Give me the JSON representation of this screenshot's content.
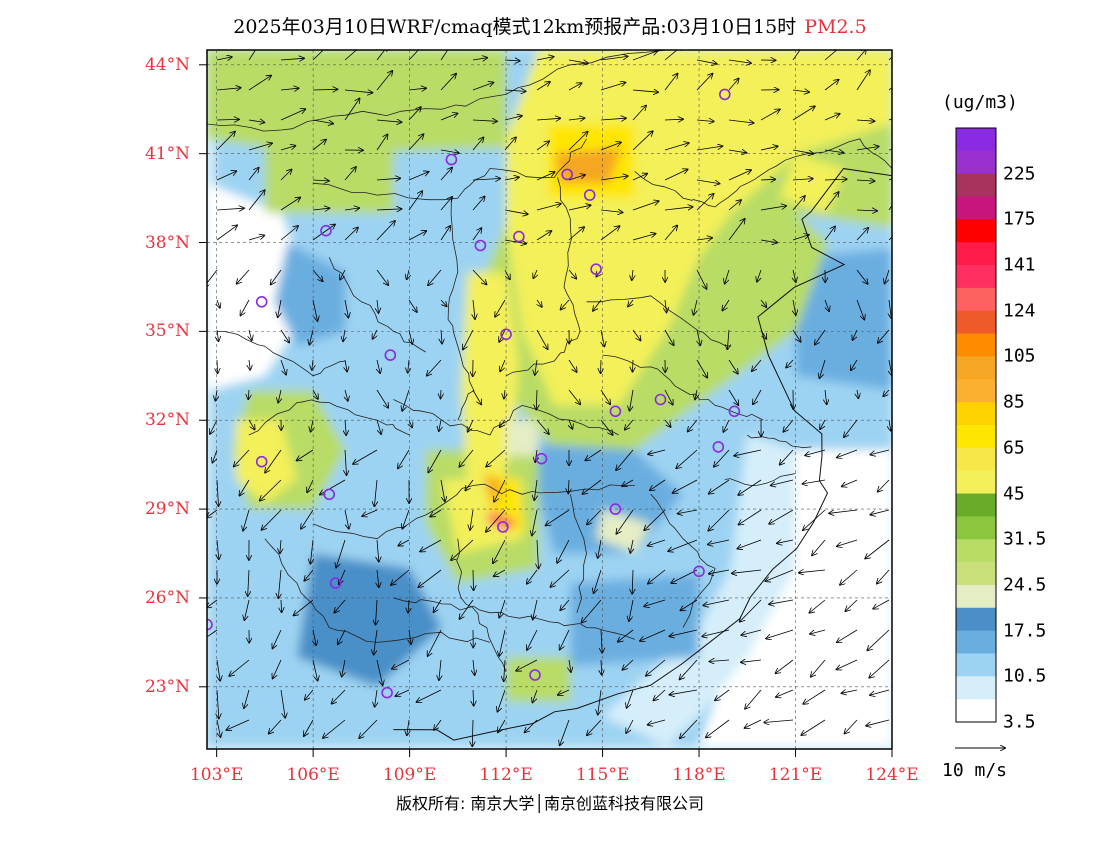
{
  "title": {
    "main": "2025年03月10日WRF/cmaq模式12km预报产品:03月10日15时",
    "pollutant": "PM2.5"
  },
  "legend": {
    "unit": "(ug/m3)",
    "bins": [
      {
        "color": "#8a2be2"
      },
      {
        "color": "#9b30d0",
        "label": "225"
      },
      {
        "color": "#a8335e"
      },
      {
        "color": "#c8157d",
        "label": "175"
      },
      {
        "color": "#ff0000"
      },
      {
        "color": "#ff1a4a",
        "label": "141"
      },
      {
        "color": "#ff3060"
      },
      {
        "color": "#ff6060",
        "label": "124"
      },
      {
        "color": "#f05a28"
      },
      {
        "color": "#ff8c00",
        "label": "105"
      },
      {
        "color": "#f5a623"
      },
      {
        "color": "#fbb030",
        "label": "85"
      },
      {
        "color": "#ffd200"
      },
      {
        "color": "#ffe600",
        "label": "65"
      },
      {
        "color": "#f7e84a"
      },
      {
        "color": "#f3f05a",
        "label": "45"
      },
      {
        "color": "#6aab2a"
      },
      {
        "color": "#8cc63f",
        "label": "31.5"
      },
      {
        "color": "#b8dc66"
      },
      {
        "color": "#c9e07a",
        "label": "24.5"
      },
      {
        "color": "#e4edc4"
      },
      {
        "color": "#4a8fc8",
        "label": "17.5"
      },
      {
        "color": "#6aaee0"
      },
      {
        "color": "#9dd3f2",
        "label": "10.5"
      },
      {
        "color": "#d5eefa"
      },
      {
        "color": "#ffffff",
        "label": "3.5"
      }
    ],
    "reference_vector": "10 m/s"
  },
  "axes": {
    "lat_labels": [
      "44°N",
      "41°N",
      "38°N",
      "35°N",
      "32°N",
      "29°N",
      "26°N",
      "23°N"
    ],
    "lat_values": [
      44,
      41,
      38,
      35,
      32,
      29,
      26,
      23
    ],
    "lon_labels": [
      "103°E",
      "106°E",
      "109°E",
      "112°E",
      "115°E",
      "118°E",
      "121°E",
      "124°E"
    ],
    "lon_values": [
      103,
      106,
      109,
      112,
      115,
      118,
      121,
      124
    ],
    "lat_range": [
      20.9,
      44.5
    ],
    "lon_range": [
      102.7,
      124
    ]
  },
  "map": {
    "colors": {
      "white": "#ffffff",
      "lightblue": "#d5eefa",
      "blue": "#9dd3f2",
      "midblue": "#6aaee0",
      "darkblue": "#4a8fc8",
      "palegreen": "#e4edc4",
      "green": "#b8dc66",
      "darkgreen": "#8cc63f",
      "yellow": "#f3f05a",
      "gold": "#ffe600",
      "orange": "#f5a623",
      "red": "#ff3060"
    },
    "stations": [
      {
        "lon": 118.8,
        "lat": 43.0
      },
      {
        "lon": 110.3,
        "lat": 40.8
      },
      {
        "lon": 113.9,
        "lat": 40.3
      },
      {
        "lon": 114.6,
        "lat": 39.6
      },
      {
        "lon": 106.4,
        "lat": 38.4
      },
      {
        "lon": 111.2,
        "lat": 37.9
      },
      {
        "lon": 112.4,
        "lat": 38.2
      },
      {
        "lon": 114.8,
        "lat": 37.1
      },
      {
        "lon": 104.4,
        "lat": 36.0
      },
      {
        "lon": 112.0,
        "lat": 34.9
      },
      {
        "lon": 108.4,
        "lat": 34.2
      },
      {
        "lon": 115.4,
        "lat": 32.3
      },
      {
        "lon": 116.8,
        "lat": 32.7
      },
      {
        "lon": 119.1,
        "lat": 32.3
      },
      {
        "lon": 118.6,
        "lat": 31.1
      },
      {
        "lon": 104.4,
        "lat": 30.6
      },
      {
        "lon": 113.1,
        "lat": 30.7
      },
      {
        "lon": 106.5,
        "lat": 29.5
      },
      {
        "lon": 115.4,
        "lat": 29.0
      },
      {
        "lon": 111.9,
        "lat": 28.4
      },
      {
        "lon": 106.7,
        "lat": 26.5
      },
      {
        "lon": 118.0,
        "lat": 26.9
      },
      {
        "lon": 102.7,
        "lat": 25.1
      },
      {
        "lon": 112.9,
        "lat": 23.4
      },
      {
        "lon": 108.3,
        "lat": 22.8
      }
    ]
  },
  "copyright": "版权所有: 南京大学│南京创蓝科技有限公司"
}
